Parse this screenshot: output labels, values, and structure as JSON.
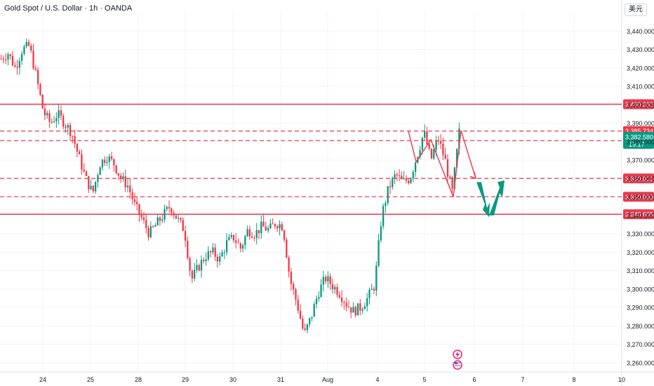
{
  "header": {
    "title": "Gold Spot / U.S. Dollar · 1h · OANDA",
    "currency": "美元"
  },
  "chart_data": {
    "type": "candlestick",
    "title": "Gold Spot / U.S. Dollar · 1h · OANDA",
    "ylim": [
      3255,
      3450
    ],
    "y_ticks": [
      "3,260.000",
      "3,270.000",
      "3,280.000",
      "3,290.000",
      "3,300.000",
      "3,310.000",
      "3,320.000",
      "3,330.000",
      "3,340.000",
      "3,350.000",
      "3,360.000",
      "3,370.000",
      "3,380.000",
      "3,390.000",
      "3,400.000",
      "3,410.000",
      "3,420.000",
      "3,430.000",
      "3,440.000"
    ],
    "x_ticks": [
      "24",
      "25",
      "28",
      "29",
      "30",
      "31",
      "Aug",
      "4",
      "5",
      "6",
      "7",
      "8",
      "10"
    ],
    "close_path": [
      3425,
      3428,
      3420,
      3430,
      3432,
      3415,
      3396,
      3390,
      3395,
      3390,
      3385,
      3372,
      3360,
      3352,
      3368,
      3372,
      3368,
      3360,
      3356,
      3345,
      3338,
      3330,
      3335,
      3340,
      3345,
      3338,
      3332,
      3305,
      3312,
      3318,
      3320,
      3316,
      3325,
      3328,
      3322,
      3332,
      3330,
      3334,
      3332,
      3336,
      3334,
      3305,
      3292,
      3275,
      3285,
      3298,
      3306,
      3302,
      3298,
      3292,
      3288,
      3290,
      3295,
      3302,
      3340,
      3355,
      3362,
      3358,
      3360,
      3372,
      3385,
      3370,
      3382,
      3370,
      3352,
      3385
    ],
    "candles_count": 200,
    "levels": [
      {
        "value": 3400.282,
        "label": "3,400.282",
        "style": "solid"
      },
      {
        "value": 3385.734,
        "label": "3,385.734",
        "style": "dashed"
      },
      {
        "value": 3380.574,
        "label": "3,380.574",
        "style": "dashed"
      },
      {
        "value": 3360.011,
        "label": "3,360.011",
        "style": "dashed"
      },
      {
        "value": 3350.093,
        "label": "3,350.093",
        "style": "dashed"
      },
      {
        "value": 3340.605,
        "label": "3,340.605",
        "style": "solid"
      }
    ],
    "current_price": {
      "value": 3382.58,
      "label": "3,382.580",
      "countdown": "19:17"
    },
    "projection_red": [
      [
        3380,
        3385.734
      ],
      [
        3370,
        3378
      ],
      [
        3350,
        3360
      ]
    ],
    "projection_green": [
      [
        3360,
        3342
      ],
      [
        3342,
        3358
      ]
    ],
    "colors": {
      "up": "#089981",
      "down": "#f23645",
      "level": "#e8394d",
      "grid": "#f0f3fa"
    },
    "events": [
      "lightning-icon",
      "us-flag-icon"
    ]
  }
}
